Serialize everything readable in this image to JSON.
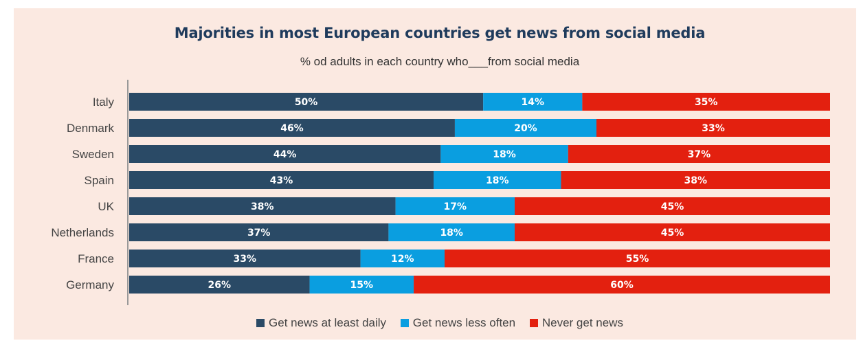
{
  "colors": {
    "daily": "#2a4a66",
    "less_often": "#0a9ee0",
    "never": "#e3200f",
    "axis": "#999999"
  },
  "chart_data": {
    "type": "bar",
    "orientation": "horizontal",
    "stacked": true,
    "title": "Majorities in most European countries get news from social media",
    "subtitle": "% od adults in each country who___from social media",
    "categories": [
      "Italy",
      "Denmark",
      "Sweden",
      "Spain",
      "UK",
      "Netherlands",
      "France",
      "Germany"
    ],
    "series": [
      {
        "name": "Get news at least daily",
        "values": [
          50,
          46,
          44,
          43,
          38,
          37,
          33,
          26
        ]
      },
      {
        "name": "Get news less often",
        "values": [
          14,
          20,
          18,
          18,
          17,
          18,
          12,
          15
        ]
      },
      {
        "name": "Never get news",
        "values": [
          35,
          33,
          37,
          38,
          45,
          45,
          55,
          60
        ]
      }
    ],
    "value_suffix": "%",
    "legend_position": "bottom",
    "grid": false
  }
}
